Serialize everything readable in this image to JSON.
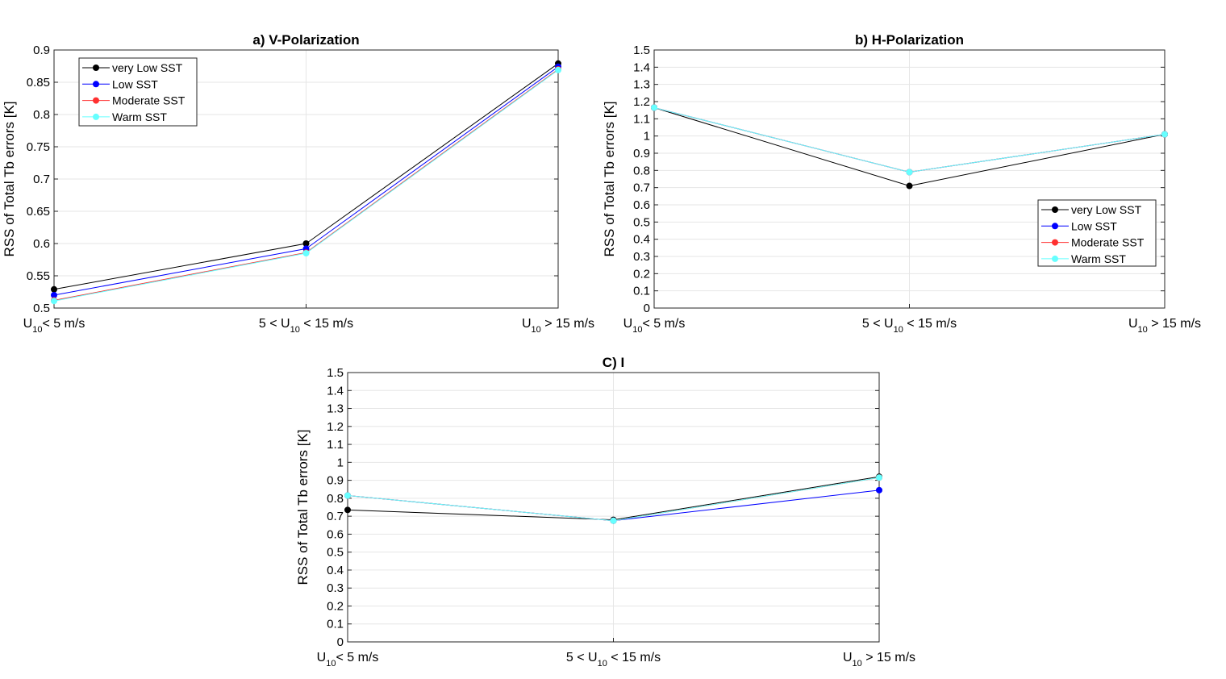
{
  "chart_data": [
    {
      "type": "line",
      "title": "a) V-Polarization",
      "xlabel": "",
      "ylabel": "RSS of Total Tb errors [K]",
      "categories": [
        {
          "pre": "U",
          "sub": "10",
          "post": "<  5 m/s"
        },
        {
          "pre": "5 < U",
          "sub": "10",
          "post": " < 15 m/s"
        },
        {
          "pre": "U",
          "sub": "10",
          "post": " > 15 m/s"
        }
      ],
      "ylim": [
        0.5,
        0.9
      ],
      "yticks": [
        0.5,
        0.55,
        0.6,
        0.65,
        0.7,
        0.75,
        0.8,
        0.85,
        0.9
      ],
      "ytick_labels": [
        "0.5",
        "0.55",
        "0.6",
        "0.65",
        "0.7",
        "0.75",
        "0.8",
        "0.85",
        "0.9"
      ],
      "grid": true,
      "legend_position": "top-left",
      "series": [
        {
          "name": "very Low SST",
          "color": "#000000",
          "values": [
            0.529,
            0.6,
            0.879
          ]
        },
        {
          "name": "Low SST",
          "color": "#0000ff",
          "values": [
            0.52,
            0.592,
            0.874
          ]
        },
        {
          "name": "Moderate SST",
          "color": "#ff3030",
          "values": [
            0.512,
            0.586,
            0.87
          ]
        },
        {
          "name": "Warm SST",
          "color": "#66ffff",
          "values": [
            0.511,
            0.585,
            0.869
          ]
        }
      ]
    },
    {
      "type": "line",
      "title": "b) H-Polarization",
      "xlabel": "",
      "ylabel": "RSS of Total Tb errors [K]",
      "categories": [
        {
          "pre": "U",
          "sub": "10",
          "post": "<  5 m/s"
        },
        {
          "pre": "5 < U",
          "sub": "10",
          "post": " < 15 m/s"
        },
        {
          "pre": "U",
          "sub": "10",
          "post": " > 15 m/s"
        }
      ],
      "ylim": [
        0,
        1.5
      ],
      "yticks": [
        0,
        0.1,
        0.2,
        0.3,
        0.4,
        0.5,
        0.6,
        0.7,
        0.8,
        0.9,
        1.0,
        1.1,
        1.2,
        1.3,
        1.4,
        1.5
      ],
      "ytick_labels": [
        "0",
        "0.1",
        "0.2",
        "0.3",
        "0.4",
        "0.5",
        "0.6",
        "0.7",
        "0.8",
        "0.9",
        "1",
        "1.1",
        "1.2",
        "1.3",
        "1.4",
        "1.5"
      ],
      "grid": true,
      "legend_position": "bottom-right",
      "series": [
        {
          "name": "very Low SST",
          "color": "#000000",
          "values": [
            1.165,
            0.71,
            1.01
          ]
        },
        {
          "name": "Low SST",
          "color": "#0000ff",
          "values": [
            1.165,
            0.79,
            1.01
          ]
        },
        {
          "name": "Moderate SST",
          "color": "#ff3030",
          "values": [
            1.165,
            0.79,
            1.01
          ]
        },
        {
          "name": "Warm SST",
          "color": "#66ffff",
          "values": [
            1.165,
            0.79,
            1.01
          ]
        }
      ]
    },
    {
      "type": "line",
      "title": "C) I",
      "xlabel": "",
      "ylabel": "RSS of Total Tb errors [K]",
      "categories": [
        {
          "pre": "U",
          "sub": "10",
          "post": "<  5 m/s"
        },
        {
          "pre": "5 < U",
          "sub": "10",
          "post": " < 15 m/s"
        },
        {
          "pre": "U",
          "sub": "10",
          "post": " > 15 m/s"
        }
      ],
      "ylim": [
        0,
        1.5
      ],
      "yticks": [
        0,
        0.1,
        0.2,
        0.3,
        0.4,
        0.5,
        0.6,
        0.7,
        0.8,
        0.9,
        1.0,
        1.1,
        1.2,
        1.3,
        1.4,
        1.5
      ],
      "ytick_labels": [
        "0",
        "0.1",
        "0.2",
        "0.3",
        "0.4",
        "0.5",
        "0.6",
        "0.7",
        "0.8",
        "0.9",
        "1",
        "1.1",
        "1.2",
        "1.3",
        "1.4",
        "1.5"
      ],
      "grid": true,
      "legend_position": "none",
      "series": [
        {
          "name": "very Low SST",
          "color": "#000000",
          "values": [
            0.735,
            0.68,
            0.92
          ]
        },
        {
          "name": "Low SST",
          "color": "#0000ff",
          "values": [
            0.815,
            0.675,
            0.845
          ]
        },
        {
          "name": "Moderate SST",
          "color": "#ff3030",
          "values": [
            0.815,
            0.675,
            0.915
          ]
        },
        {
          "name": "Warm SST",
          "color": "#66ffff",
          "values": [
            0.815,
            0.675,
            0.915
          ]
        }
      ]
    }
  ]
}
